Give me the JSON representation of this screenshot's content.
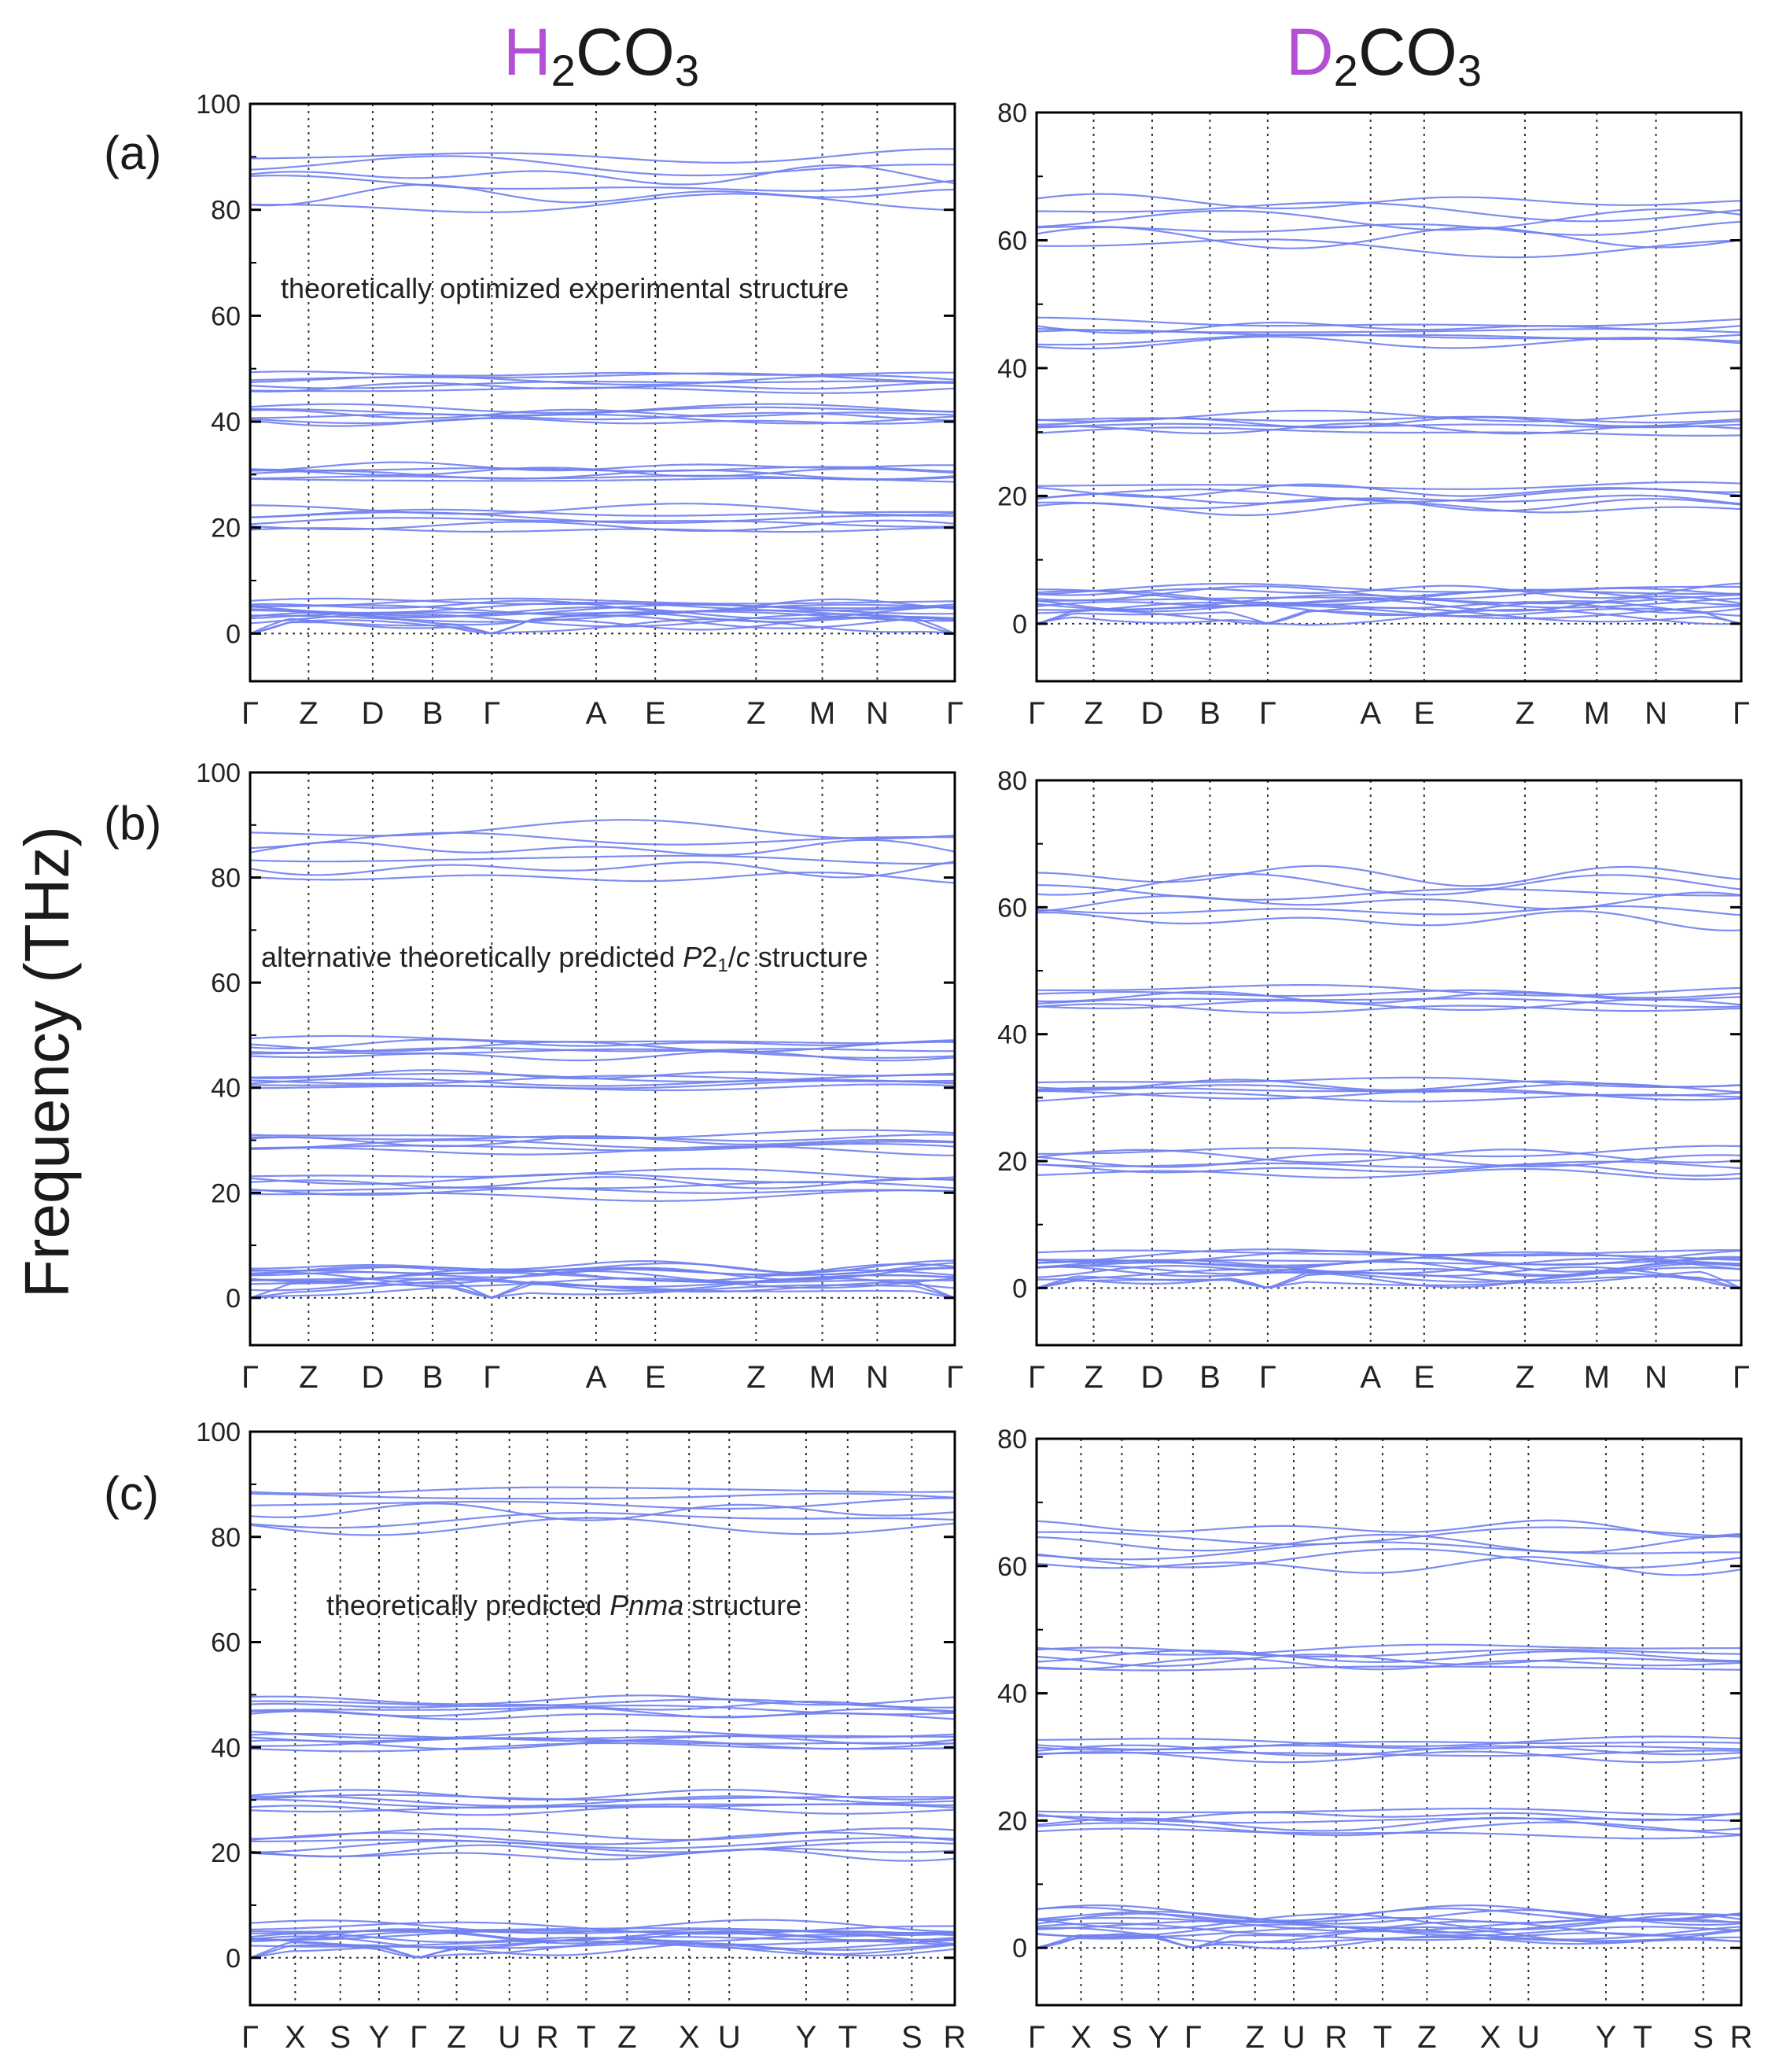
{
  "figure": {
    "column_titles": [
      {
        "iso": "H",
        "rest": "2CO3",
        "prefix": "H",
        "sub1": "2",
        "mid": "CO",
        "sub2": "3"
      },
      {
        "iso": "D",
        "rest": "2CO3",
        "prefix": "D",
        "sub1": "2",
        "mid": "CO",
        "sub2": "3"
      }
    ],
    "y_axis_label": "Frequency (THz)",
    "panel_labels": [
      "(a)",
      "(b)",
      "(c)"
    ],
    "annotations": {
      "a": "theoretically optimized experimental structure",
      "b_pre": "alternative theoretically predicted ",
      "b_p": "P",
      "b_21": "2",
      "b_sub": "1",
      "b_slash": "/",
      "b_c": "c",
      "b_post": " structure",
      "c_pre": "theoretically predicted ",
      "c_it": "Pnma",
      "c_post": " structure"
    },
    "colors": {
      "band": "#6f7ff0",
      "isotope": "#b24fd6",
      "axis": "#000000"
    }
  },
  "chart_data": [
    {
      "id": "a-H",
      "type": "line",
      "title": "H2CO3 (a) theoretically optimized experimental structure",
      "ylabel": "Frequency (THz)",
      "ylim": [
        -9,
        100
      ],
      "yticks": [
        0,
        20,
        40,
        60,
        80,
        100
      ],
      "kpath": [
        "Γ",
        "Z",
        "D",
        "B",
        "Γ",
        "A",
        "E",
        "Z",
        "M",
        "N",
        "Γ"
      ],
      "kpos": [
        0,
        0.083,
        0.174,
        0.259,
        0.343,
        0.491,
        0.575,
        0.718,
        0.812,
        0.89,
        1
      ],
      "band_groups": [
        [
          1.5,
          6
        ],
        [
          19.5,
          23.5
        ],
        [
          29,
          31.5
        ],
        [
          40,
          42.5
        ],
        [
          46,
          49
        ],
        [
          81,
          86,
          90
        ]
      ]
    },
    {
      "id": "a-D",
      "type": "line",
      "title": "D2CO3 (a)",
      "ylabel": "Frequency (THz)",
      "ylim": [
        -9,
        80
      ],
      "yticks": [
        0,
        20,
        40,
        60,
        80
      ],
      "kpath": [
        "Γ",
        "Z",
        "D",
        "B",
        "Γ",
        "A",
        "E",
        "Z",
        "M",
        "N",
        "Γ"
      ],
      "kpos": [
        0,
        0.081,
        0.164,
        0.246,
        0.328,
        0.474,
        0.55,
        0.693,
        0.795,
        0.879,
        1
      ],
      "band_groups": [
        [
          1,
          5.5
        ],
        [
          18,
          21.5
        ],
        [
          30,
          32.5
        ],
        [
          44,
          47
        ],
        [
          59,
          63,
          66
        ]
      ]
    },
    {
      "id": "b-H",
      "type": "line",
      "title": "H2CO3 (b) alternative theoretically predicted P21/c structure",
      "ylabel": "Frequency (THz)",
      "ylim": [
        -9,
        100
      ],
      "yticks": [
        0,
        20,
        40,
        60,
        80,
        100
      ],
      "kpath": [
        "Γ",
        "Z",
        "D",
        "B",
        "Γ",
        "A",
        "E",
        "Z",
        "M",
        "N",
        "Γ"
      ],
      "kpos": [
        0,
        0.083,
        0.174,
        0.259,
        0.343,
        0.491,
        0.575,
        0.718,
        0.812,
        0.89,
        1
      ],
      "band_groups": [
        [
          1.5,
          6
        ],
        [
          19.5,
          23.5
        ],
        [
          28,
          31
        ],
        [
          40,
          42.5
        ],
        [
          46,
          49
        ],
        [
          80,
          84,
          89
        ]
      ]
    },
    {
      "id": "b-D",
      "type": "line",
      "title": "D2CO3 (b)",
      "ylabel": "Frequency (THz)",
      "ylim": [
        -9,
        80
      ],
      "yticks": [
        0,
        20,
        40,
        60,
        80
      ],
      "kpath": [
        "Γ",
        "Z",
        "D",
        "B",
        "Γ",
        "A",
        "E",
        "Z",
        "M",
        "N",
        "Γ"
      ],
      "kpos": [
        0,
        0.081,
        0.164,
        0.246,
        0.328,
        0.474,
        0.55,
        0.693,
        0.795,
        0.879,
        1
      ],
      "band_groups": [
        [
          1,
          5.5
        ],
        [
          18,
          21.5
        ],
        [
          30,
          32.5
        ],
        [
          44,
          47
        ],
        [
          58,
          62,
          65
        ]
      ]
    },
    {
      "id": "c-H",
      "type": "line",
      "title": "H2CO3 (c) theoretically predicted Pnma structure",
      "ylabel": "Frequency (THz)",
      "ylim": [
        -9,
        100
      ],
      "yticks": [
        0,
        20,
        40,
        60,
        80,
        100
      ],
      "kpath": [
        "Γ",
        "X",
        "S",
        "Y",
        "Γ",
        "Z",
        "U",
        "R",
        "T",
        "Z",
        "X",
        "U",
        "Y",
        "T",
        "S",
        "R"
      ],
      "kpos": [
        0,
        0.064,
        0.128,
        0.183,
        0.239,
        0.293,
        0.368,
        0.422,
        0.477,
        0.535,
        0.623,
        0.68,
        0.789,
        0.848,
        0.939,
        1
      ],
      "band_groups": [
        [
          1.5,
          6
        ],
        [
          19.5,
          23.5
        ],
        [
          28,
          31
        ],
        [
          40,
          42.5
        ],
        [
          46,
          49
        ],
        [
          82,
          85,
          89
        ]
      ]
    },
    {
      "id": "c-D",
      "type": "line",
      "title": "D2CO3 (c)",
      "ylabel": "Frequency (THz)",
      "ylim": [
        -9,
        80
      ],
      "yticks": [
        0,
        20,
        40,
        60,
        80
      ],
      "kpath": [
        "Γ",
        "X",
        "S",
        "Y",
        "Γ",
        "Z",
        "U",
        "R",
        "T",
        "Z",
        "X",
        "U",
        "Y",
        "T",
        "S",
        "R"
      ],
      "kpos": [
        0,
        0.063,
        0.121,
        0.173,
        0.222,
        0.31,
        0.365,
        0.425,
        0.491,
        0.554,
        0.644,
        0.698,
        0.808,
        0.86,
        0.946,
        1
      ],
      "band_groups": [
        [
          1,
          5.5
        ],
        [
          18,
          21.5
        ],
        [
          30,
          32.5
        ],
        [
          44,
          47
        ],
        [
          60,
          63,
          66
        ]
      ]
    }
  ]
}
